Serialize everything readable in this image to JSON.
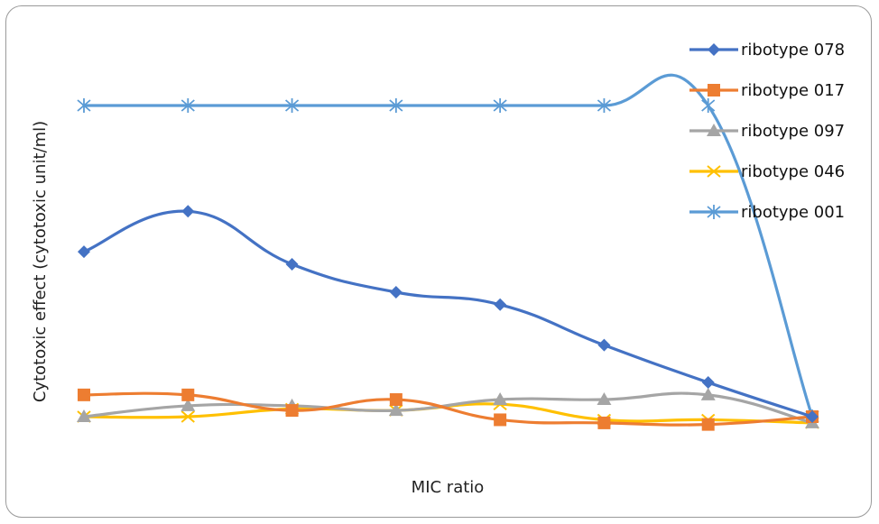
{
  "chart_data": {
    "type": "line",
    "title": "",
    "xlabel": "MIC ratio",
    "ylabel": "Cytotoxic effect (cytotoxic unit/ml)",
    "x": [
      1,
      2,
      3,
      4,
      5,
      6,
      7,
      8
    ],
    "ylim": [
      0,
      1
    ],
    "grid": false,
    "legend_position": "top-right",
    "smoothed": true,
    "series": [
      {
        "name": "ribotype 078",
        "color": "#4472C4",
        "marker": "diamond",
        "values": [
          0.53,
          0.66,
          0.49,
          0.4,
          0.36,
          0.23,
          0.11,
          0.0
        ]
      },
      {
        "name": "ribotype 017",
        "color": "#ED7D31",
        "marker": "square",
        "values": [
          0.07,
          0.07,
          0.02,
          0.055,
          -0.01,
          -0.02,
          -0.025,
          0.0
        ]
      },
      {
        "name": "ribotype 097",
        "color": "#A5A5A5",
        "marker": "triangle",
        "values": [
          0.0,
          0.035,
          0.035,
          0.02,
          0.055,
          0.055,
          0.07,
          -0.02
        ]
      },
      {
        "name": "ribotype 046",
        "color": "#FFC000",
        "marker": "x",
        "values": [
          0.0,
          0.0,
          0.025,
          0.02,
          0.04,
          -0.01,
          -0.01,
          -0.02
        ]
      },
      {
        "name": "ribotype 001",
        "color": "#5B9BD5",
        "marker": "asterisk",
        "values": [
          1.0,
          1.0,
          1.0,
          1.0,
          1.0,
          1.0,
          1.0,
          0.0
        ]
      }
    ]
  }
}
